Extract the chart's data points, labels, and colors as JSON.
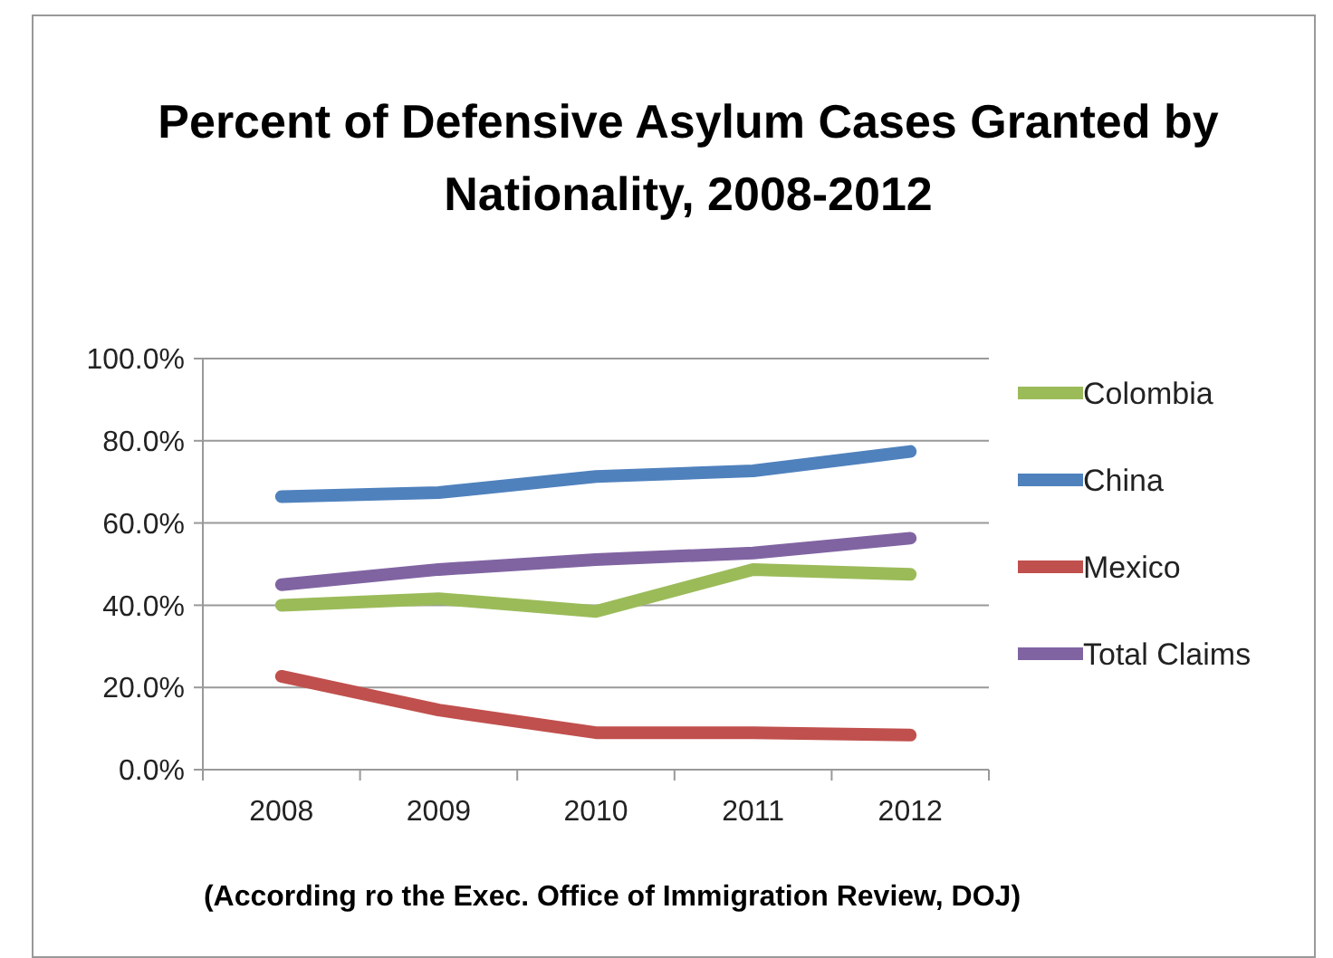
{
  "chart_data": {
    "type": "line",
    "title": "Percent of Defensive Asylum Cases Granted by Nationality, 2008-2012",
    "categories": [
      "2008",
      "2009",
      "2010",
      "2011",
      "2012"
    ],
    "series": [
      {
        "name": "Colombia",
        "color": "#9bbb59",
        "values": [
          40,
          41.6,
          38.5,
          48.7,
          47.5
        ]
      },
      {
        "name": "China",
        "color": "#4f81bd",
        "values": [
          66.4,
          67.4,
          71.3,
          72.7,
          77.4
        ]
      },
      {
        "name": "Mexico",
        "color": "#c0504d",
        "values": [
          22.7,
          14.5,
          9,
          9,
          8.4
        ]
      },
      {
        "name": "Total Claims",
        "color": "#8064a2",
        "values": [
          45,
          48.7,
          51.1,
          52.7,
          56.3
        ]
      }
    ],
    "ylim": [
      0,
      100
    ],
    "yticks": [
      {
        "value": 0,
        "label": "0.0%"
      },
      {
        "value": 20,
        "label": "20.0%"
      },
      {
        "value": 40,
        "label": "40.0%"
      },
      {
        "value": 60,
        "label": "60.0%"
      },
      {
        "value": 80,
        "label": "80.0%"
      },
      {
        "value": 100,
        "label": "100.0%"
      }
    ],
    "grid": "y",
    "legend": "right",
    "marker": "none",
    "line_style": "solid",
    "annotations": [
      "(According ro the Exec. Office of Immigration Review, DOJ)"
    ]
  }
}
